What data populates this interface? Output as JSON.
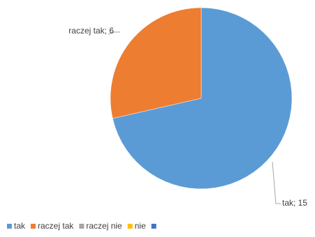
{
  "chart_data": {
    "type": "pie",
    "categories": [
      "tak",
      "raczej tak",
      "raczej nie",
      "nie",
      null
    ],
    "values": [
      15,
      6,
      0,
      0,
      0
    ],
    "value_labels": [
      "tak; 15",
      "raczej tak; 6",
      null,
      null,
      null
    ],
    "colors": [
      "#5b9bd5",
      "#ed7d31",
      "#a5a5a5",
      "#ffc000",
      "#4472c4"
    ],
    "legend": "bottom"
  }
}
